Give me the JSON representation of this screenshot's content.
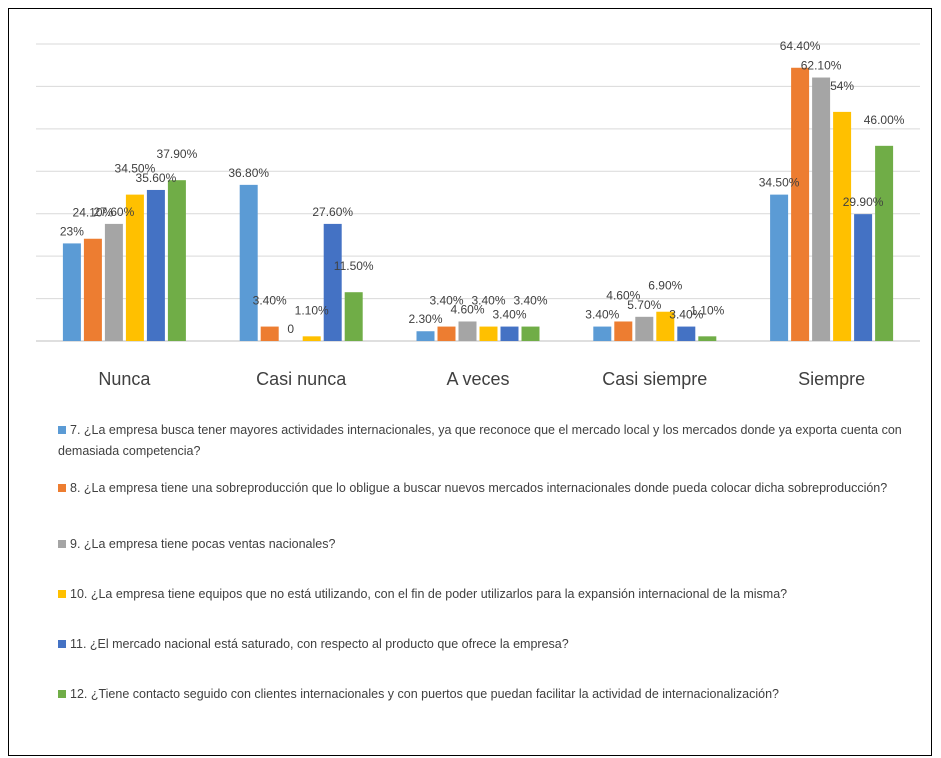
{
  "chart_data": {
    "type": "bar",
    "title": "",
    "xlabel": "",
    "ylabel": "",
    "ylim": [
      0,
      70
    ],
    "grid": true,
    "legend_position": "bottom",
    "categories": [
      "Nunca",
      "Casi nunca",
      "A veces",
      "Casi siempre",
      "Siempre"
    ],
    "series": [
      {
        "name": "7.  ¿La empresa busca tener mayores actividades internacionales, ya que reconoce que el mercado local y los mercados donde ya exporta cuenta con demasiada competencia?",
        "color": "#5B9BD5",
        "values": [
          23,
          36.8,
          2.3,
          3.4,
          34.5
        ],
        "labels": [
          "23%",
          "36.80%",
          "2.30%",
          "3.40%",
          "34.50%"
        ]
      },
      {
        "name": "8.  ¿La empresa tiene una sobreproducción que lo obligue a buscar nuevos mercados internacionales donde pueda colocar dicha sobreproducción?",
        "color": "#ED7D31",
        "values": [
          24.1,
          3.4,
          3.4,
          4.6,
          64.4
        ],
        "labels": [
          "24.10%",
          "3.40%",
          "3.40%",
          "4.60%",
          "64.40%"
        ]
      },
      {
        "name": "9.  ¿La empresa tiene pocas ventas nacionales?",
        "color": "#A5A5A5",
        "values": [
          27.6,
          0,
          4.6,
          5.7,
          62.1
        ],
        "labels": [
          "27.60%",
          "0",
          "4.60%",
          "5.70%",
          "62.10%"
        ]
      },
      {
        "name": "10.  ¿La empresa tiene equipos que no está utilizando, con el fin de poder utilizarlos para la expansión internacional de la misma?",
        "color": "#FFC000",
        "values": [
          34.5,
          1.1,
          3.4,
          6.9,
          54
        ],
        "labels": [
          "34.50%",
          "1.10%",
          "3.40%",
          "6.90%",
          "54%"
        ]
      },
      {
        "name": "11.  ¿El mercado nacional está saturado, con respecto al producto que ofrece la empresa?",
        "color": "#4472C4",
        "values": [
          35.6,
          27.6,
          3.4,
          3.4,
          29.9
        ],
        "labels": [
          "35.60%",
          "27.60%",
          "3.40%",
          "3.40%",
          "29.90%"
        ]
      },
      {
        "name": "12.  ¿Tiene contacto seguido con clientes internacionales y con puertos que puedan facilitar la actividad de internacionalización?",
        "color": "#70AD47",
        "values": [
          37.9,
          11.5,
          3.4,
          1.1,
          46
        ],
        "labels": [
          "37.90%",
          "11.50%",
          "3.40%",
          "1.10%",
          "46.00%"
        ]
      }
    ]
  }
}
